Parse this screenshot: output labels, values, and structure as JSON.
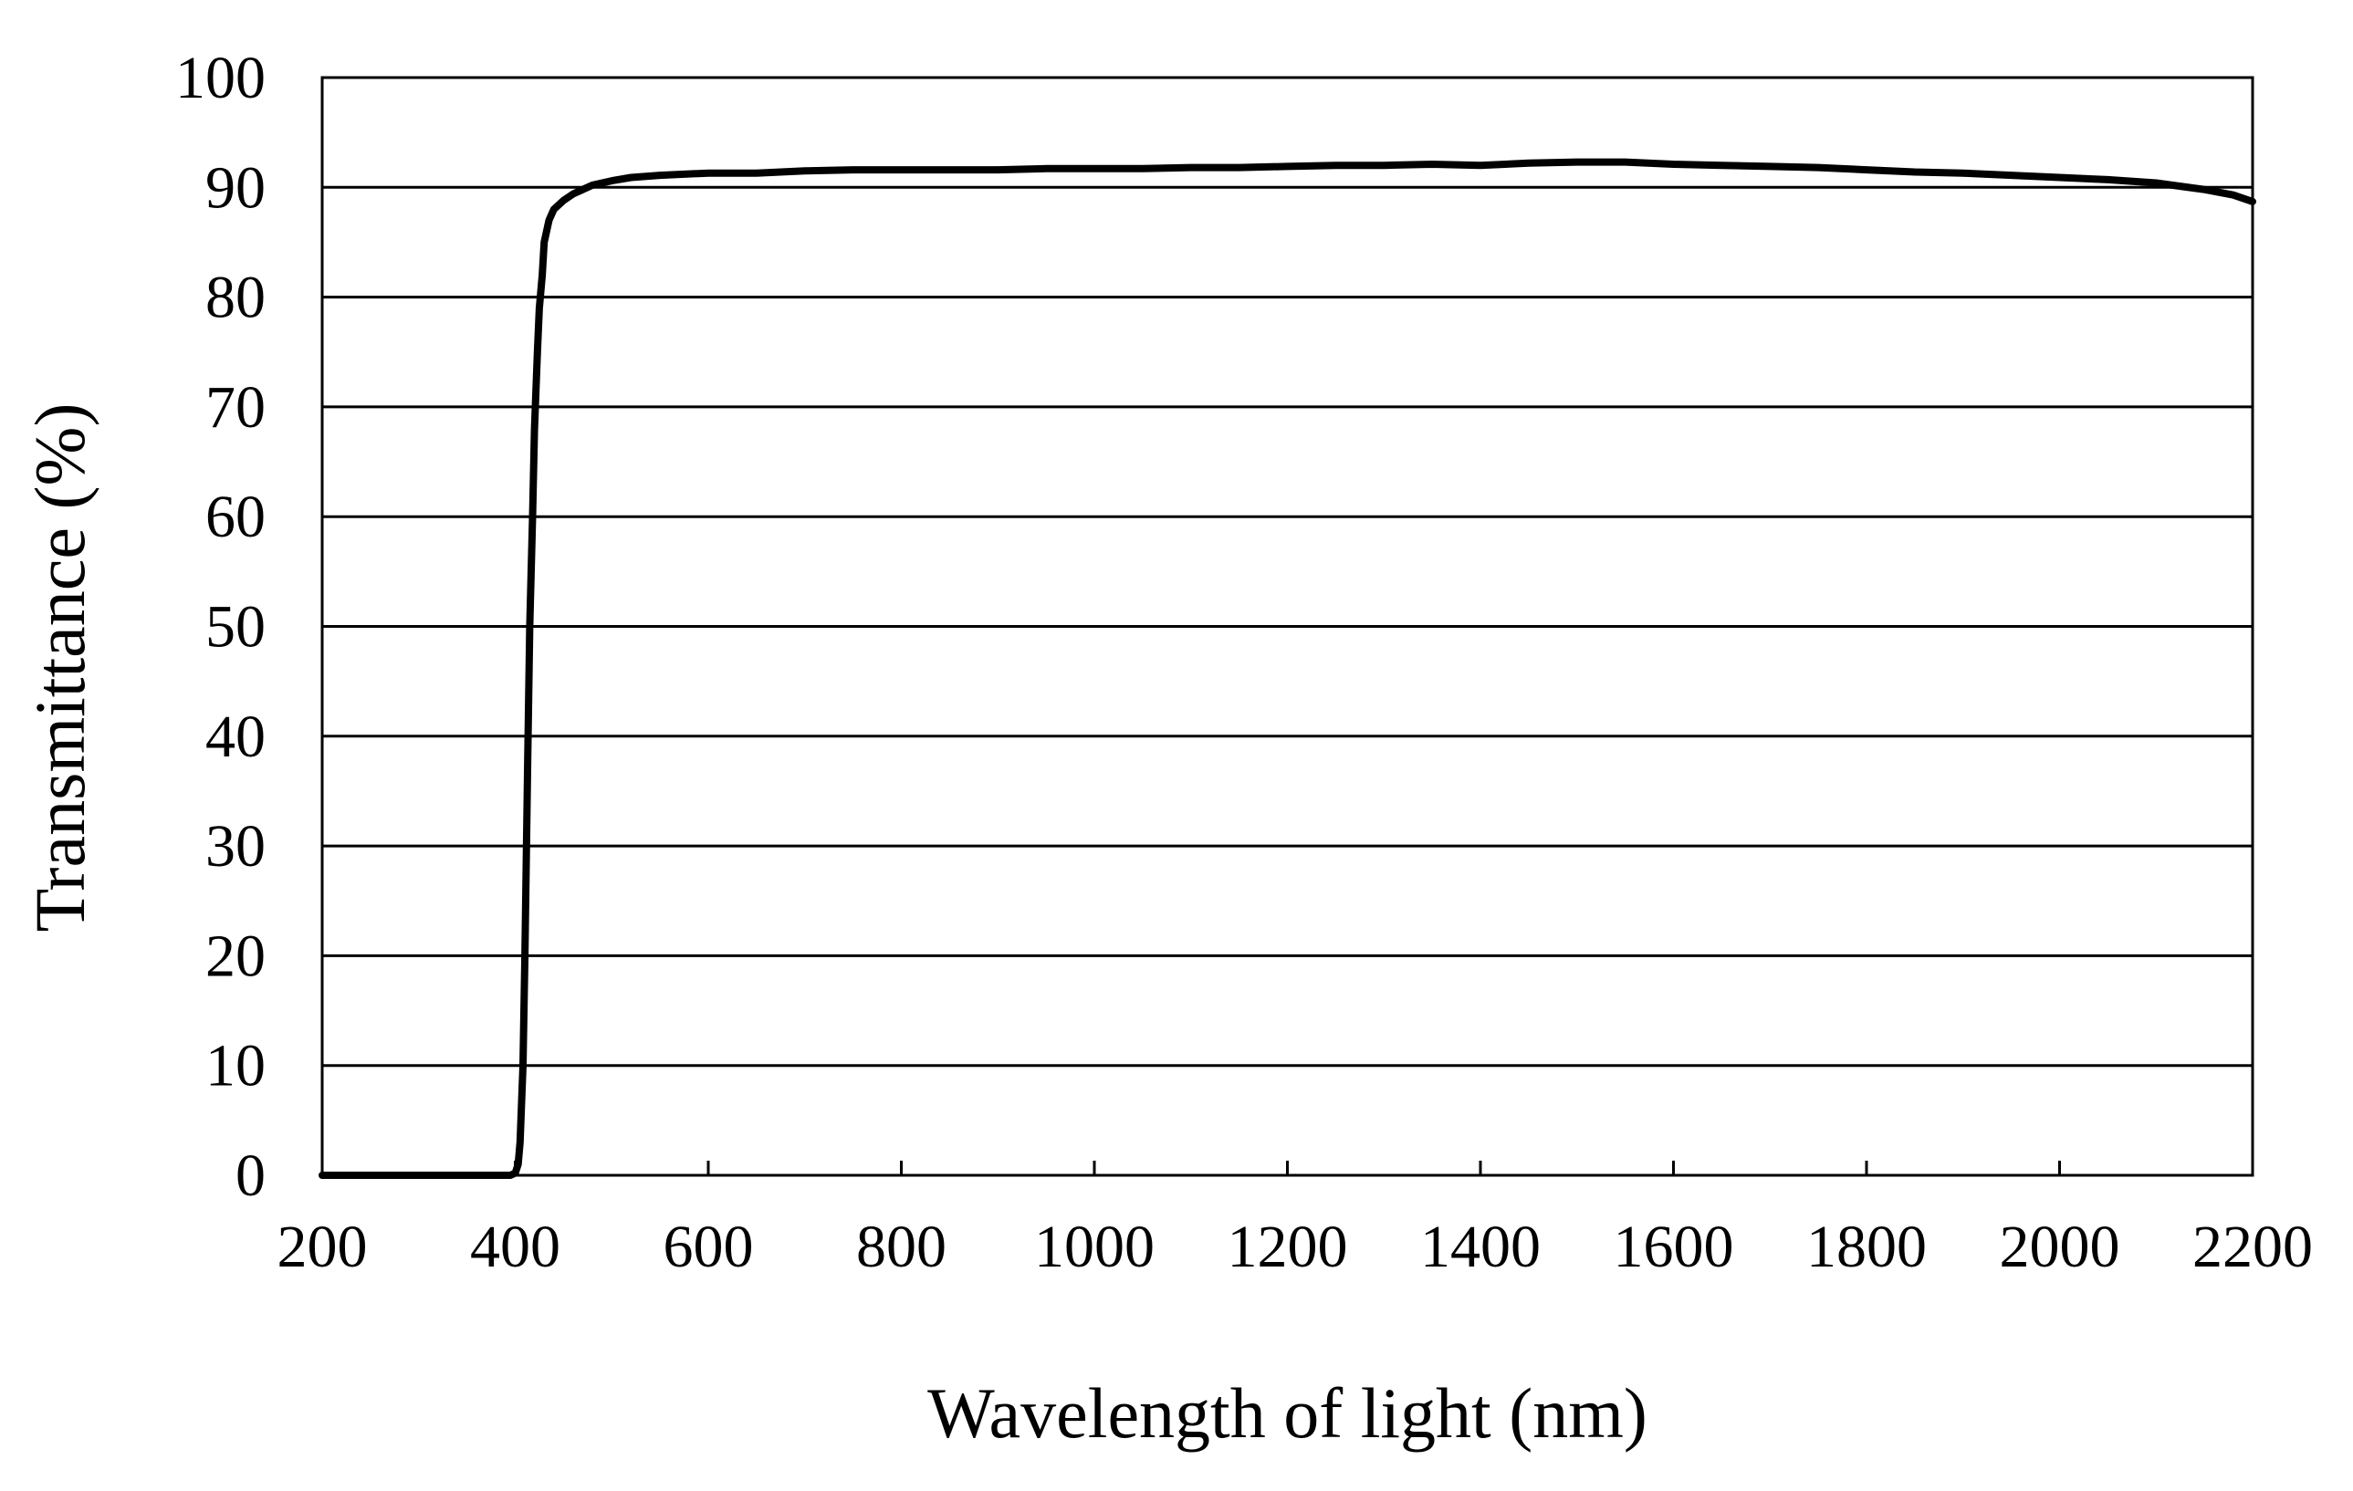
{
  "chart_data": {
    "type": "line",
    "title": "",
    "xlabel": "Wavelength of light (nm)",
    "ylabel": "Transmittance (%)",
    "xlim": [
      200,
      2200
    ],
    "ylim": [
      0,
      100
    ],
    "x_ticks": [
      "200",
      "400",
      "600",
      "800",
      "1000",
      "1200",
      "1400",
      "1600",
      "1800",
      "2000",
      "2200"
    ],
    "y_ticks": [
      "0",
      "10",
      "20",
      "30",
      "40",
      "50",
      "60",
      "70",
      "80",
      "90",
      "100"
    ],
    "grid": "horizontal",
    "legend": "none",
    "colors": {
      "line": "#000000",
      "grid": "#000000",
      "background": "#ffffff"
    },
    "series": [
      {
        "x": [
          200,
          250,
          300,
          350,
          395,
          400,
          403,
          405,
          408,
          410,
          413,
          415,
          418,
          420,
          423,
          425,
          428,
          430,
          435,
          440,
          450,
          460,
          470,
          480,
          500,
          520,
          550,
          600,
          650,
          700,
          750,
          800,
          850,
          900,
          950,
          1000,
          1050,
          1100,
          1150,
          1200,
          1250,
          1300,
          1350,
          1400,
          1450,
          1500,
          1550,
          1600,
          1650,
          1700,
          1750,
          1800,
          1850,
          1900,
          1950,
          2000,
          2050,
          2100,
          2150,
          2180,
          2200
        ],
        "y": [
          0,
          0,
          0,
          0,
          0,
          0.2,
          1,
          3,
          10,
          20,
          38,
          50,
          60,
          68,
          75,
          79,
          82,
          85,
          87,
          88,
          88.8,
          89.4,
          89.8,
          90.2,
          90.6,
          90.9,
          91.1,
          91.3,
          91.3,
          91.5,
          91.6,
          91.6,
          91.6,
          91.6,
          91.7,
          91.7,
          91.7,
          91.8,
          91.8,
          91.9,
          92.0,
          92.0,
          92.1,
          92.0,
          92.2,
          92.3,
          92.3,
          92.1,
          92.0,
          91.9,
          91.8,
          91.6,
          91.4,
          91.3,
          91.1,
          90.9,
          90.7,
          90.4,
          89.8,
          89.3,
          88.7
        ]
      }
    ]
  }
}
